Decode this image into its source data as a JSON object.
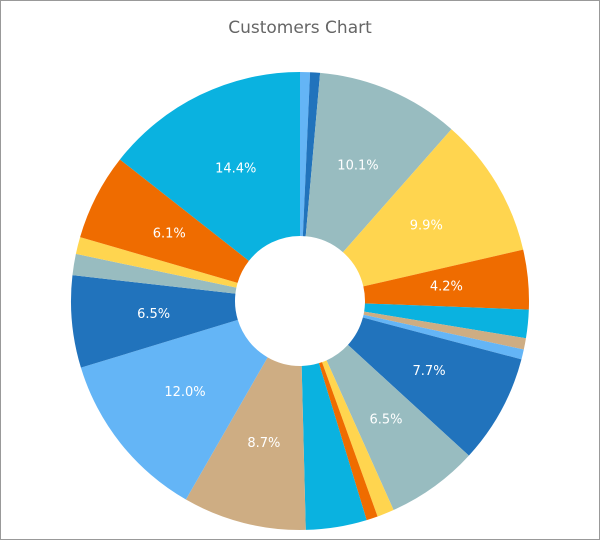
{
  "chart_data": {
    "type": "donut",
    "title": "Customers Chart",
    "values": [
      0.7,
      0.7,
      10.1,
      9.9,
      4.2,
      2.0,
      0.8,
      0.7,
      7.7,
      6.5,
      1.2,
      0.8,
      4.3,
      8.7,
      12.0,
      6.5,
      1.5,
      1.2,
      6.1,
      14.4
    ],
    "value_labels": [
      null,
      null,
      "10.1%",
      "9.9%",
      "4.2%",
      null,
      null,
      null,
      "7.7%",
      "6.5%",
      null,
      null,
      null,
      "8.7%",
      "12.0%",
      "6.5%",
      null,
      null,
      "6.1%",
      "14.4%"
    ],
    "colors": [
      "#64b5f6",
      "#2173bc",
      "#98bcc0",
      "#ffd54f",
      "#ef6c00",
      "#0ab2e0",
      "#cead83",
      "#64b5f6",
      "#2173bc",
      "#98bcc0",
      "#ffd54f",
      "#ef6c00",
      "#0ab2e0",
      "#cead83",
      "#64b5f6",
      "#2173bc",
      "#98bcc0",
      "#ffd54f",
      "#ef6c00",
      "#0ab2e0"
    ]
  }
}
